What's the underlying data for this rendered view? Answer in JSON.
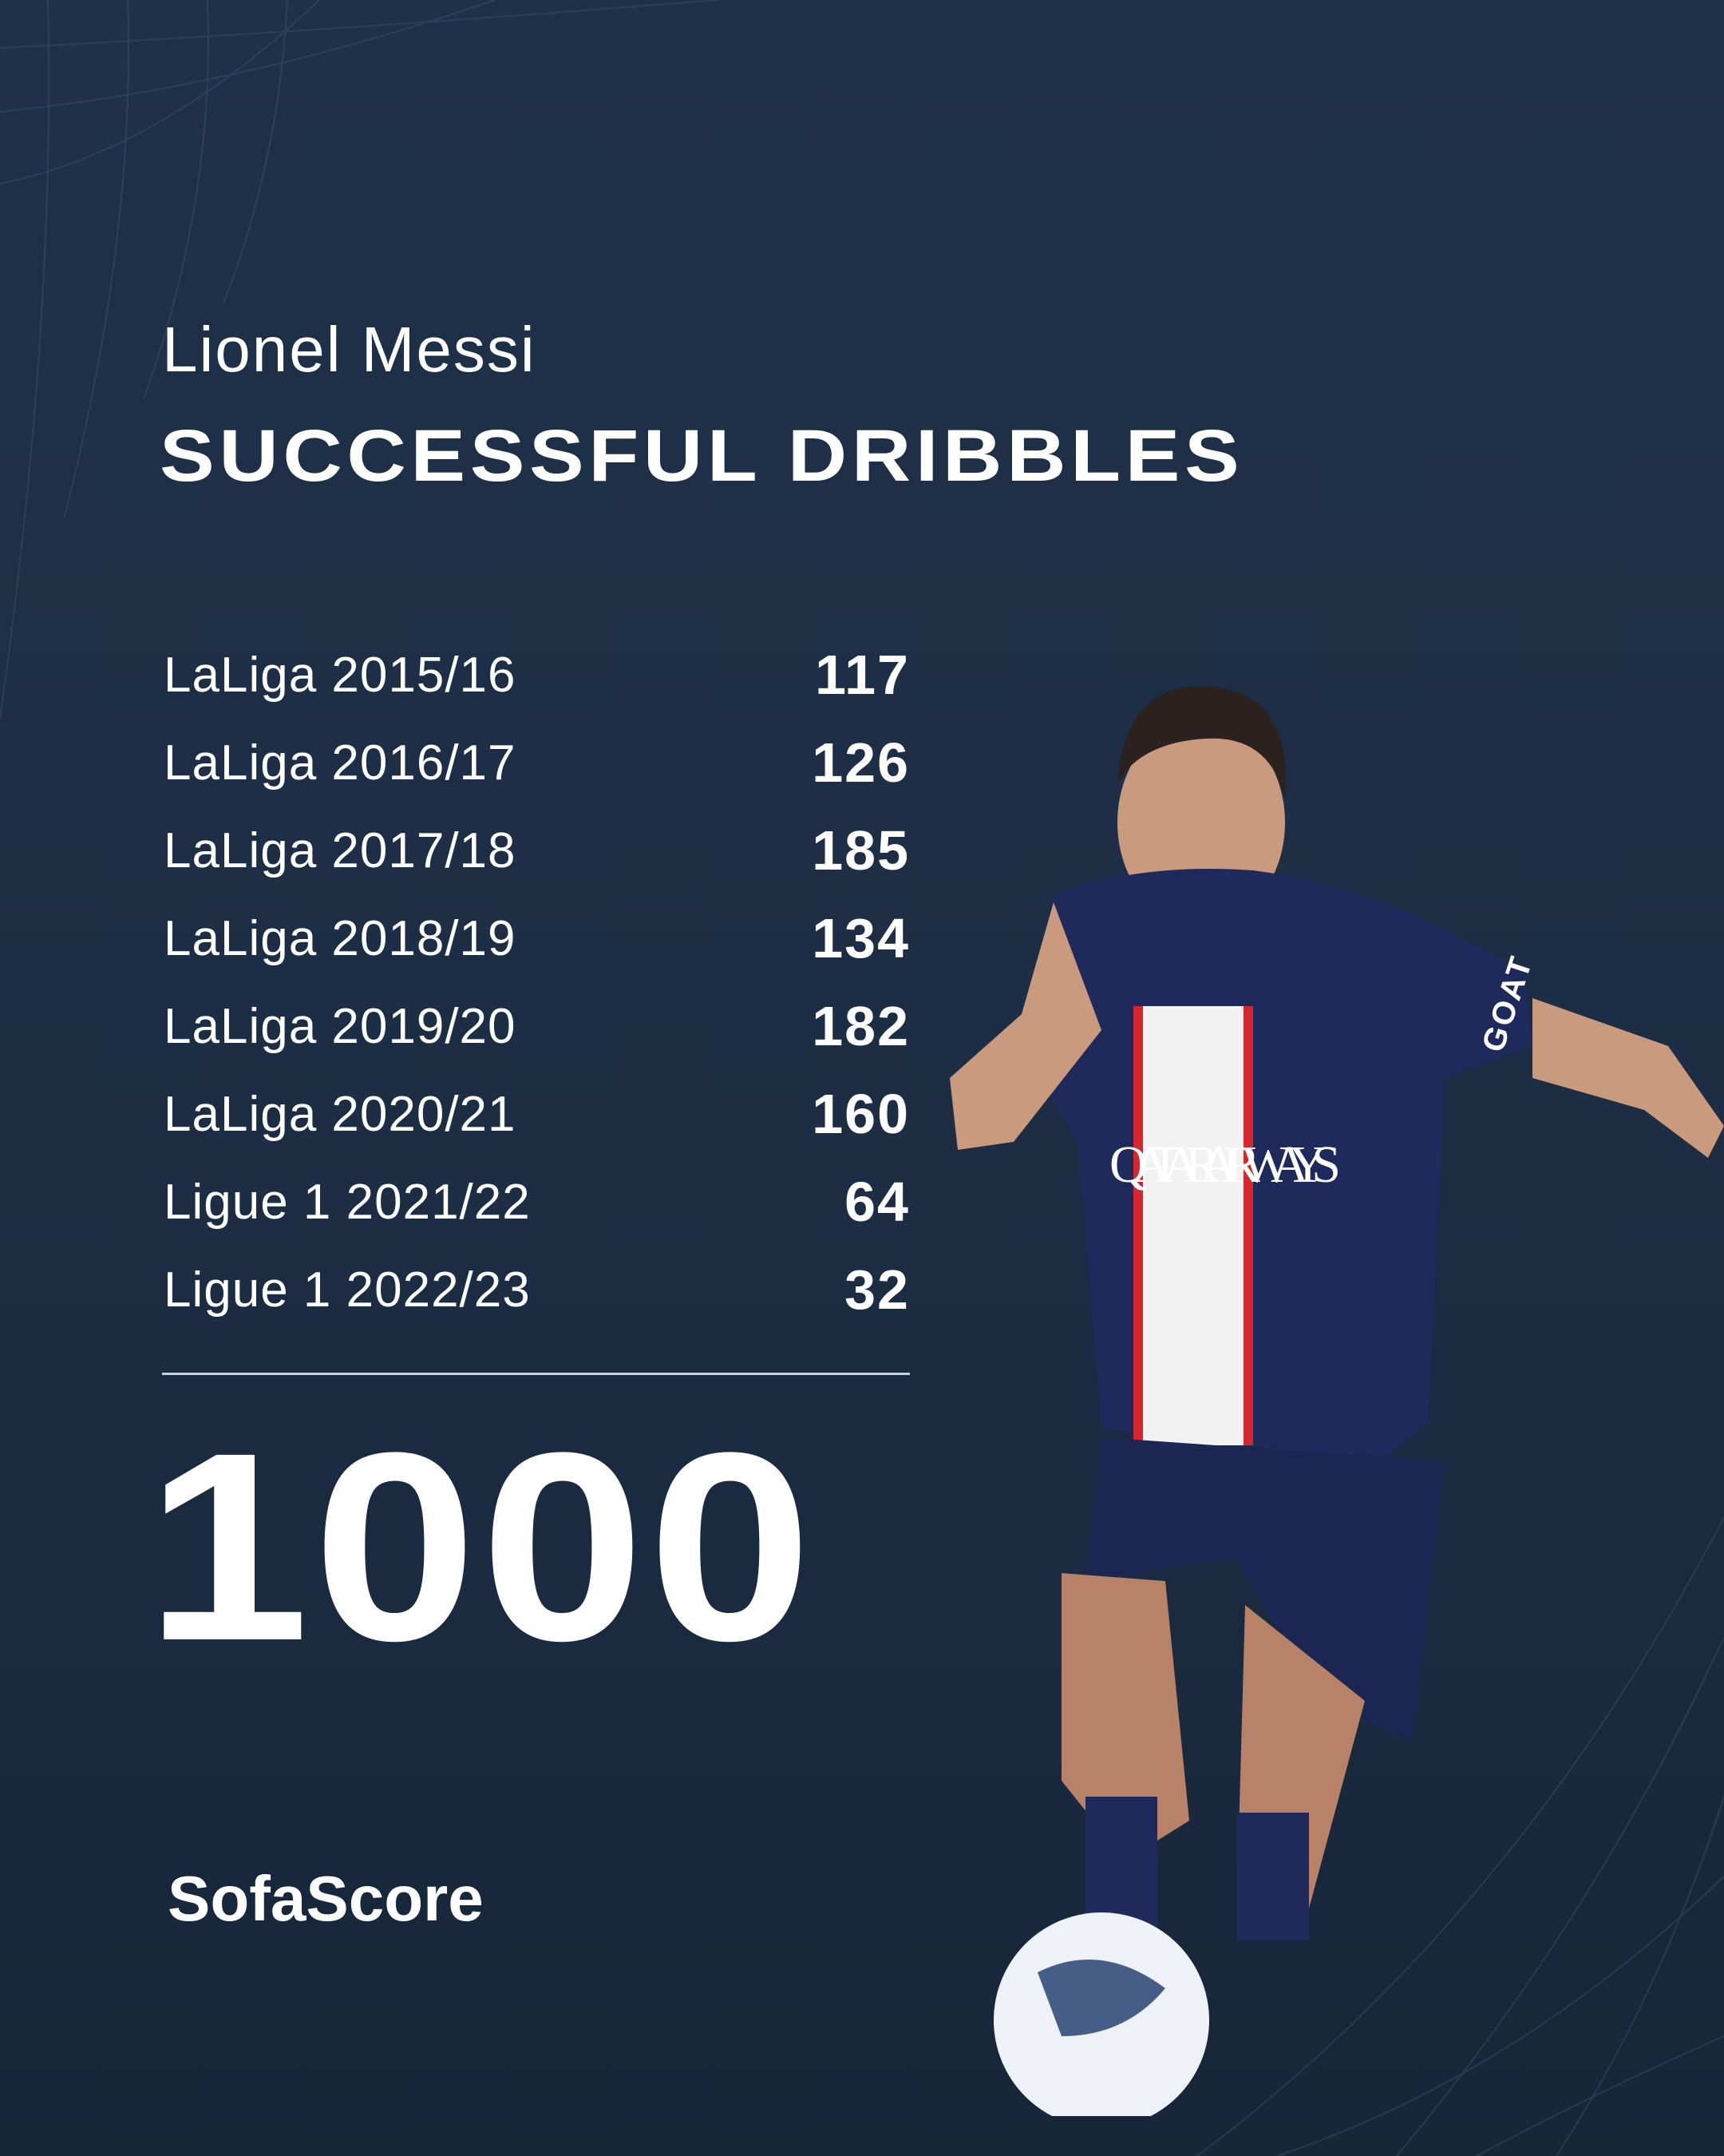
{
  "header": {
    "player_name": "Lionel Messi",
    "title": "SUCCESSFUL DRIBBLES"
  },
  "seasons": [
    {
      "label": "LaLiga 2015/16",
      "value": "117"
    },
    {
      "label": "LaLiga 2016/17",
      "value": "126"
    },
    {
      "label": "LaLiga 2017/18",
      "value": "185"
    },
    {
      "label": "LaLiga 2018/19",
      "value": "134"
    },
    {
      "label": "LaLiga 2019/20",
      "value": "182"
    },
    {
      "label": "LaLiga 2020/21",
      "value": "160"
    },
    {
      "label": "Ligue 1 2021/22",
      "value": "64"
    },
    {
      "label": "Ligue 1 2022/23",
      "value": "32"
    }
  ],
  "total": "1000",
  "brand": {
    "logo": "SofaScore"
  },
  "photo": {
    "sponsor": "QATAR AIRWAYS",
    "shirt_text": "GOAT"
  },
  "colors": {
    "background": "#1e3048",
    "text": "#ffffff",
    "jersey": "#1f2a5c",
    "stripe_red": "#d8262e"
  }
}
